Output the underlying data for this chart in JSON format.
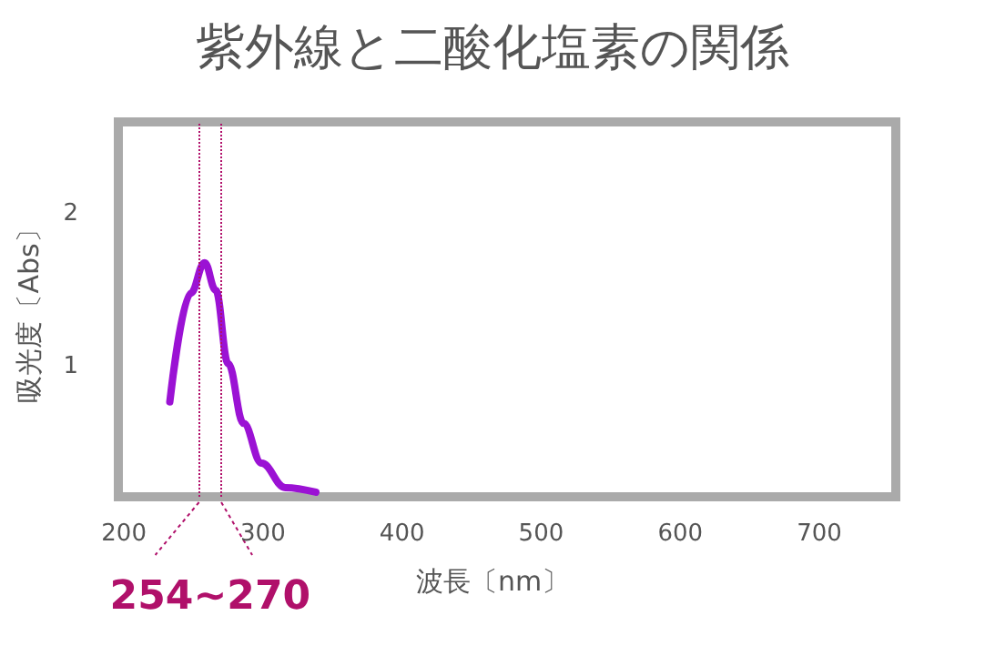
{
  "chart_data": {
    "type": "line",
    "title": "紫外線と二酸化塩素の関係",
    "xlabel": "波長〔nm〕",
    "ylabel": "吸光度〔Abs〕",
    "x": [
      233,
      248,
      258,
      266,
      275,
      286,
      299,
      316,
      338
    ],
    "series": [
      {
        "color": "#9b12d4",
        "values": [
          0.77,
          1.48,
          1.68,
          1.5,
          1.02,
          0.63,
          0.37,
          0.21,
          0.18
        ]
      }
    ],
    "xlim": [
      196,
      755
    ],
    "xticks": [
      200,
      300,
      400,
      500,
      600,
      700
    ],
    "ylim": [
      0.15,
      2.6
    ],
    "yticks": [
      1,
      2
    ],
    "ref_lines": [
      {
        "axis": "x",
        "value": 254,
        "color": "#b0106a",
        "line_style": "dotted"
      },
      {
        "axis": "x",
        "value": 270,
        "color": "#b0106a",
        "line_style": "dotted"
      }
    ],
    "annotations": [
      "254~270"
    ],
    "grid": false,
    "marker": "none",
    "line_style": "solid"
  }
}
